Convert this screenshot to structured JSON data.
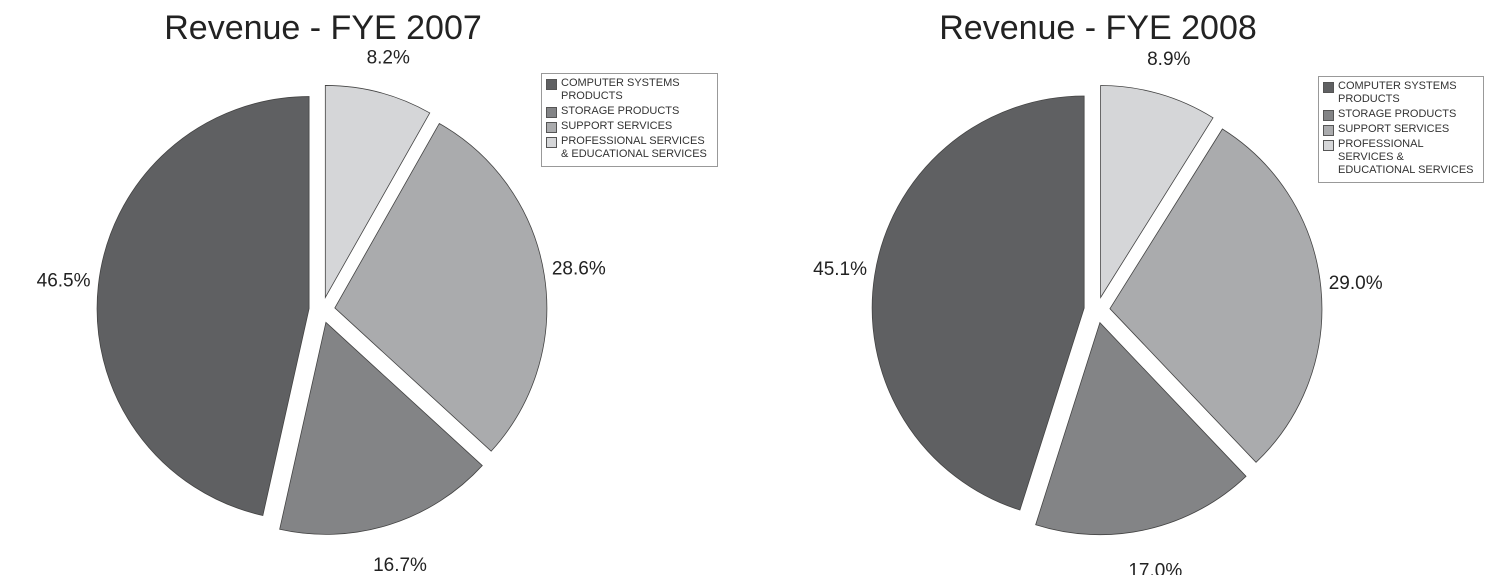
{
  "chart_data": [
    {
      "type": "pie",
      "title": "Revenue - FYE 2007",
      "categories": [
        "COMPUTER SYSTEMS PRODUCTS",
        "STORAGE PRODUCTS",
        "SUPPORT SERVICES",
        "PROFESSIONAL SERVICES & EDUCATIONAL SERVICES"
      ],
      "values": [
        46.5,
        16.7,
        28.6,
        8.2
      ],
      "value_labels": [
        "46.5%",
        "16.7%",
        "28.6%",
        "8.2%"
      ],
      "colors": [
        "#5f6062",
        "#838486",
        "#aaabad",
        "#d5d6d8"
      ]
    },
    {
      "type": "pie",
      "title": "Revenue - FYE 2008",
      "categories": [
        "COMPUTER SYSTEMS PRODUCTS",
        "STORAGE PRODUCTS",
        "SUPPORT SERVICES",
        "PROFESSIONAL SERVICES & EDUCATIONAL SERVICES"
      ],
      "values": [
        45.1,
        17.0,
        29.0,
        8.9
      ],
      "value_labels": [
        "45.1%",
        "17.0%",
        "29.0%",
        "8.9%"
      ],
      "colors": [
        "#5f6062",
        "#838486",
        "#aaabad",
        "#d5d6d8"
      ]
    }
  ]
}
